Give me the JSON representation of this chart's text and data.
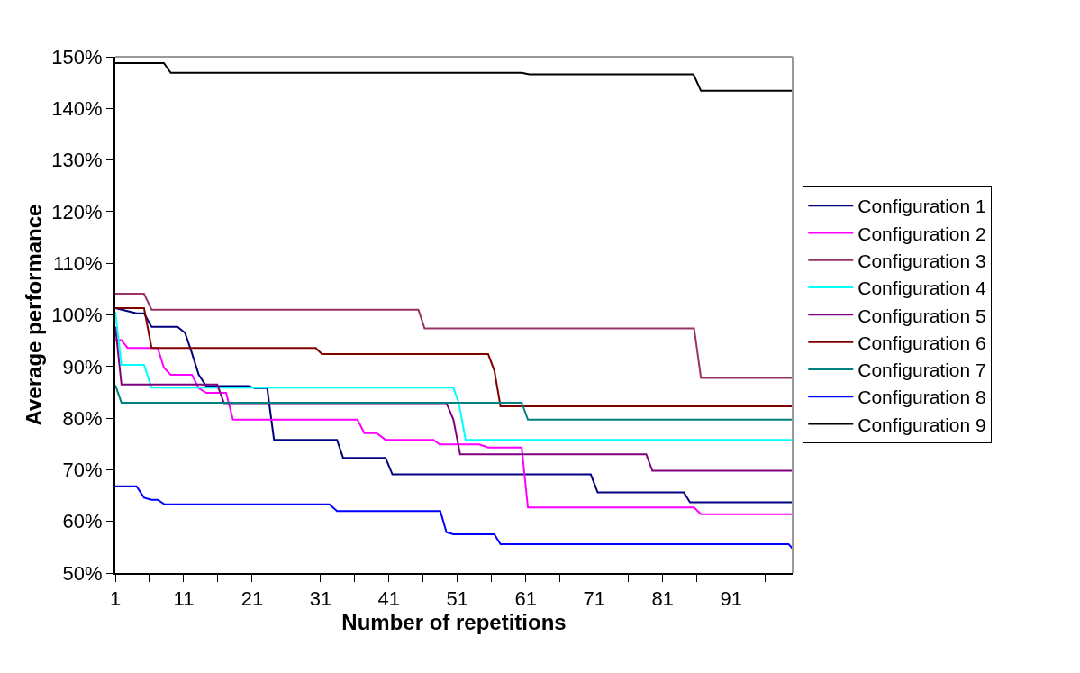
{
  "chart_data": {
    "type": "line",
    "xlabel": "Number of repetitions",
    "ylabel": "Average performance",
    "xlim": [
      1,
      100
    ],
    "xticks": [
      1,
      {
        "value": 6,
        "label": null
      },
      11,
      {
        "value": 16,
        "label": null
      },
      21,
      {
        "value": 26,
        "label": null
      },
      31,
      {
        "value": 36,
        "label": null
      },
      41,
      {
        "value": 46,
        "label": null
      },
      51,
      {
        "value": 56,
        "label": null
      },
      61,
      {
        "value": 66,
        "label": null
      },
      71,
      {
        "value": 76,
        "label": null
      },
      81,
      {
        "value": 86,
        "label": null
      },
      91,
      {
        "value": 96,
        "label": null
      }
    ],
    "ylim": [
      50,
      150
    ],
    "yticks": [
      {
        "value": 50,
        "label": "50%"
      },
      {
        "value": 60,
        "label": "60%"
      },
      {
        "value": 70,
        "label": "70%"
      },
      {
        "value": 80,
        "label": "80%"
      },
      {
        "value": 90,
        "label": "90%"
      },
      {
        "value": 100,
        "label": "100%"
      },
      {
        "value": 110,
        "label": "110%"
      },
      {
        "value": 120,
        "label": "120%"
      },
      {
        "value": 130,
        "label": "130%"
      },
      {
        "value": 140,
        "label": "140%"
      },
      {
        "value": 150,
        "label": "150%"
      }
    ],
    "legend": "right",
    "marker": "none",
    "line_style": "solid",
    "series": [
      {
        "name": "Configuration 1",
        "color": "#000080",
        "x": [
          1,
          2.9,
          4.1,
          5.2,
          6.3,
          10.1,
          11.2,
          12.1,
          13.2,
          14.3,
          20.5,
          21.4,
          23.2,
          24.2,
          33.4,
          34.3,
          40.5,
          41.5,
          70.5,
          71.5,
          84.1,
          85.0,
          100
        ],
        "values": [
          101.3,
          100.7,
          100.3,
          100.3,
          97.7,
          97.7,
          96.5,
          93.0,
          88.4,
          86.2,
          86.2,
          85.8,
          85.8,
          75.8,
          75.8,
          72.3,
          72.3,
          69.1,
          69.1,
          65.6,
          65.6,
          63.7,
          63.7
        ]
      },
      {
        "name": "Configuration 2",
        "color": "#ff00ff",
        "x": [
          1,
          1.9,
          2.8,
          7.2,
          8.1,
          9.1,
          12.2,
          13.2,
          14.3,
          17.2,
          18.2,
          36.4,
          37.4,
          39.2,
          40.5,
          47.5,
          48.4,
          54.2,
          55.5,
          60.4,
          61.3,
          85.6,
          86.6,
          100
        ],
        "values": [
          95.1,
          95.1,
          93.6,
          93.6,
          89.8,
          88.4,
          88.4,
          85.8,
          84.9,
          84.9,
          79.7,
          79.7,
          77.1,
          77.1,
          75.8,
          75.8,
          74.9,
          74.9,
          74.3,
          74.3,
          62.7,
          62.7,
          61.4,
          61.4
        ]
      },
      {
        "name": "Configuration 3",
        "color": "#993366",
        "x": [
          1,
          5.2,
          6.3,
          45.3,
          46.2,
          85.6,
          86.6,
          100
        ],
        "values": [
          104.1,
          104.1,
          101.0,
          101.0,
          97.4,
          97.4,
          87.8,
          87.8
        ]
      },
      {
        "name": "Configuration 4",
        "color": "#00ffff",
        "x": [
          1,
          1.9,
          5.2,
          6.3,
          50.4,
          51.2,
          52.2,
          100
        ],
        "values": [
          100.6,
          90.3,
          90.3,
          85.9,
          85.9,
          83.0,
          75.8,
          75.8
        ]
      },
      {
        "name": "Configuration 5",
        "color": "#800080",
        "x": [
          1,
          1.9,
          15.9,
          16.9,
          49.4,
          50.4,
          51.4,
          78.6,
          79.5,
          100
        ],
        "values": [
          97.7,
          86.5,
          86.5,
          82.9,
          82.9,
          79.8,
          73.0,
          73.0,
          69.8,
          69.8
        ]
      },
      {
        "name": "Configuration 6",
        "color": "#800000",
        "x": [
          1,
          5.2,
          6.3,
          30.3,
          31.2,
          55.5,
          56.4,
          57.3,
          100
        ],
        "values": [
          101.3,
          101.3,
          93.6,
          93.6,
          92.4,
          92.4,
          89.2,
          82.3,
          82.3
        ]
      },
      {
        "name": "Configuration 7",
        "color": "#008080",
        "x": [
          1,
          1.9,
          60.4,
          61.3,
          100
        ],
        "values": [
          86.4,
          83.0,
          83.0,
          79.7,
          79.7
        ]
      },
      {
        "name": "Configuration 8",
        "color": "#0000ff",
        "x": [
          1,
          4.1,
          5.2,
          6.3,
          7.2,
          8.2,
          32.3,
          33.4,
          48.5,
          49.4,
          50.4,
          56.4,
          57.3,
          99.4,
          100
        ],
        "values": [
          66.8,
          66.8,
          64.6,
          64.2,
          64.2,
          63.3,
          63.3,
          62.0,
          62.0,
          57.9,
          57.5,
          57.5,
          55.6,
          55.6,
          54.7
        ]
      },
      {
        "name": "Configuration 9",
        "color": "#000000",
        "x": [
          1,
          8.1,
          9.1,
          60.4,
          61.5,
          85.5,
          86.6,
          100
        ],
        "values": [
          148.8,
          148.8,
          146.9,
          146.9,
          146.6,
          146.6,
          143.4,
          143.4
        ]
      }
    ]
  }
}
